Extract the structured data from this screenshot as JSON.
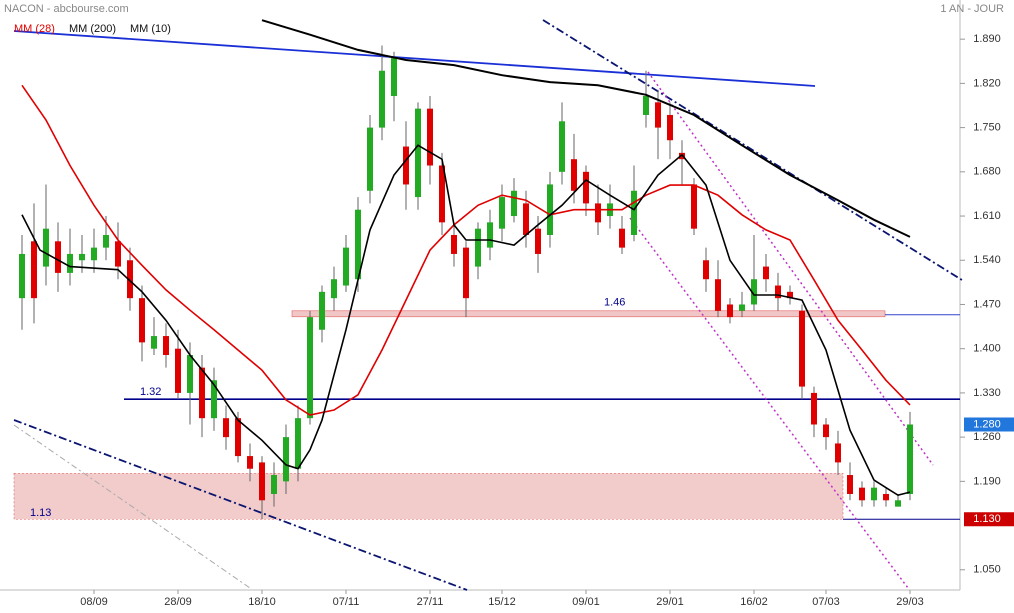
{
  "chart_data": {
    "type": "candlestick",
    "title": "NACON - abcbourse.com",
    "subtitle": "1 AN - JOUR",
    "categories": [
      null,
      null,
      null,
      null,
      null,
      null,
      "08/09",
      null,
      null,
      null,
      null,
      null,
      null,
      "28/09",
      null,
      null,
      null,
      null,
      null,
      null,
      "18/10",
      null,
      null,
      null,
      null,
      null,
      null,
      "07/11",
      null,
      null,
      null,
      null,
      null,
      null,
      "27/11",
      null,
      null,
      null,
      null,
      null,
      "15/12",
      null,
      null,
      null,
      null,
      null,
      null,
      "09/01",
      null,
      null,
      null,
      null,
      null,
      null,
      "29/01",
      null,
      null,
      null,
      null,
      null,
      null,
      "16/02",
      null,
      null,
      null,
      null,
      null,
      "07/03",
      null,
      null,
      null,
      null,
      null,
      null,
      "29/03"
    ],
    "open": [
      1.48,
      1.57,
      1.53,
      1.57,
      1.52,
      1.54,
      1.54,
      1.56,
      1.57,
      1.54,
      1.48,
      1.4,
      1.42,
      1.4,
      1.33,
      1.37,
      1.29,
      1.29,
      1.29,
      1.23,
      1.22,
      1.17,
      1.19,
      1.21,
      1.29,
      1.43,
      1.48,
      1.5,
      1.51,
      1.65,
      1.75,
      1.8,
      1.72,
      1.64,
      1.78,
      1.69,
      1.58,
      1.56,
      1.53,
      1.56,
      1.59,
      1.61,
      1.63,
      1.59,
      1.58,
      1.68,
      1.7,
      1.68,
      1.63,
      1.61,
      1.59,
      1.58,
      1.77,
      1.79,
      1.77,
      1.71,
      1.66,
      1.54,
      1.51,
      1.47,
      1.46,
      1.47,
      1.53,
      1.5,
      1.49,
      1.46,
      1.33,
      1.28,
      1.25,
      1.2,
      1.18,
      1.16,
      1.17,
      1.15,
      1.17
    ],
    "high": [
      1.58,
      1.63,
      1.66,
      1.6,
      1.59,
      1.58,
      1.59,
      1.61,
      1.6,
      1.56,
      1.5,
      1.45,
      1.44,
      1.43,
      1.41,
      1.39,
      1.37,
      1.31,
      1.3,
      1.25,
      1.23,
      1.22,
      1.28,
      1.31,
      1.46,
      1.5,
      1.53,
      1.58,
      1.64,
      1.77,
      1.88,
      1.87,
      1.76,
      1.79,
      1.8,
      1.71,
      1.6,
      1.57,
      1.6,
      1.62,
      1.66,
      1.67,
      1.65,
      1.61,
      1.68,
      1.79,
      1.74,
      1.69,
      1.66,
      1.66,
      1.61,
      1.69,
      1.84,
      1.81,
      1.79,
      1.73,
      1.67,
      1.56,
      1.54,
      1.48,
      1.49,
      1.58,
      1.55,
      1.52,
      1.5,
      1.47,
      1.34,
      1.29,
      1.27,
      1.22,
      1.19,
      1.19,
      1.18,
      1.17,
      1.3
    ],
    "low": [
      1.43,
      1.44,
      1.5,
      1.49,
      1.5,
      1.52,
      1.52,
      1.54,
      1.51,
      1.46,
      1.38,
      1.39,
      1.37,
      1.32,
      1.28,
      1.26,
      1.27,
      1.24,
      1.22,
      1.19,
      1.13,
      1.15,
      1.17,
      1.19,
      1.28,
      1.41,
      1.46,
      1.49,
      1.49,
      1.63,
      1.73,
      1.76,
      1.62,
      1.62,
      1.66,
      1.58,
      1.53,
      1.45,
      1.51,
      1.54,
      1.57,
      1.6,
      1.56,
      1.52,
      1.56,
      1.66,
      1.63,
      1.61,
      1.58,
      1.59,
      1.55,
      1.57,
      1.75,
      1.7,
      1.7,
      1.66,
      1.58,
      1.49,
      1.45,
      1.44,
      1.45,
      1.46,
      1.49,
      1.46,
      1.47,
      1.32,
      1.26,
      1.24,
      1.2,
      1.16,
      1.15,
      1.15,
      1.15,
      1.15,
      1.16
    ],
    "close": [
      1.55,
      1.48,
      1.59,
      1.52,
      1.55,
      1.55,
      1.56,
      1.58,
      1.53,
      1.48,
      1.41,
      1.42,
      1.39,
      1.33,
      1.39,
      1.29,
      1.35,
      1.26,
      1.23,
      1.21,
      1.16,
      1.2,
      1.26,
      1.29,
      1.45,
      1.49,
      1.51,
      1.56,
      1.62,
      1.75,
      1.84,
      1.86,
      1.66,
      1.78,
      1.69,
      1.6,
      1.55,
      1.48,
      1.59,
      1.6,
      1.64,
      1.65,
      1.58,
      1.55,
      1.66,
      1.76,
      1.65,
      1.63,
      1.6,
      1.63,
      1.56,
      1.65,
      1.8,
      1.75,
      1.73,
      1.7,
      1.59,
      1.51,
      1.46,
      1.45,
      1.47,
      1.51,
      1.51,
      1.48,
      1.48,
      1.34,
      1.28,
      1.26,
      1.22,
      1.17,
      1.16,
      1.18,
      1.16,
      1.16,
      1.28
    ],
    "up_color": "#22aa22",
    "down_color": "#e00000",
    "series": [
      {
        "name": "MM (28)",
        "color": "#e00000",
        "width": 1.6,
        "x": [
          0,
          2,
          4,
          6,
          8,
          10,
          12,
          14,
          16,
          18,
          20,
          22,
          24,
          26,
          28,
          30,
          32,
          34,
          36,
          38,
          40,
          42,
          44,
          46,
          48,
          50,
          52,
          54,
          56,
          58,
          60,
          62,
          64,
          66,
          68,
          70,
          72,
          74
        ],
        "values": [
          1.817,
          1.762,
          1.69,
          1.627,
          1.572,
          1.532,
          1.493,
          1.461,
          1.43,
          1.398,
          1.366,
          1.319,
          1.295,
          1.303,
          1.327,
          1.398,
          1.477,
          1.556,
          1.596,
          1.627,
          1.643,
          1.635,
          1.612,
          1.62,
          1.62,
          1.62,
          1.643,
          1.659,
          1.659,
          1.643,
          1.612,
          1.588,
          1.572,
          1.509,
          1.445,
          1.398,
          1.35,
          1.311
        ]
      },
      {
        "name": "MM (200)",
        "color": "#000000",
        "width": 2,
        "x": [
          20,
          24,
          28,
          32,
          36,
          40,
          44,
          48,
          52,
          56,
          60,
          64,
          68,
          71,
          74
        ],
        "values": [
          1.92,
          1.897,
          1.873,
          1.857,
          1.849,
          1.833,
          1.822,
          1.817,
          1.802,
          1.77,
          1.722,
          1.675,
          1.635,
          1.604,
          1.577
        ]
      },
      {
        "name": "MM (10)",
        "color": "#000000",
        "width": 1.6,
        "x": [
          0,
          1.5,
          4,
          8,
          10,
          12,
          14,
          16,
          18,
          20,
          22,
          23,
          24,
          25,
          27,
          29,
          31,
          33,
          35,
          36,
          37,
          39,
          41,
          43,
          45,
          47,
          49,
          51,
          53,
          55,
          57,
          59,
          61,
          63,
          65,
          67,
          69,
          71,
          73,
          74
        ],
        "values": [
          1.612,
          1.556,
          1.53,
          1.525,
          1.49,
          1.445,
          1.39,
          1.343,
          1.287,
          1.255,
          1.216,
          1.21,
          1.24,
          1.287,
          1.43,
          1.588,
          1.675,
          1.722,
          1.7,
          1.596,
          1.572,
          1.572,
          1.564,
          1.596,
          1.627,
          1.667,
          1.643,
          1.62,
          1.675,
          1.707,
          1.659,
          1.54,
          1.485,
          1.485,
          1.477,
          1.398,
          1.271,
          1.192,
          1.168,
          1.173
        ]
      }
    ],
    "levels": [
      {
        "value": 1.32,
        "kind": "line",
        "color": "#00008b"
      },
      {
        "value": 1.46,
        "kind": "band",
        "color": "#e8a0a0"
      },
      {
        "value": 1.13,
        "kind": "zone",
        "color": "#e8a0a0"
      }
    ],
    "price_markers": [
      {
        "value": 1.28,
        "label": "1.280",
        "color": "#2277dd"
      },
      {
        "value": 1.13,
        "label": "1.130",
        "color": "#cc0000"
      }
    ],
    "ylim": [
      1.018,
      1.952
    ],
    "yticks": [
      {
        "value": 1.89,
        "label": "1.890"
      },
      {
        "value": 1.82,
        "label": "1.820"
      },
      {
        "value": 1.75,
        "label": "1.750"
      },
      {
        "value": 1.68,
        "label": "1.680"
      },
      {
        "value": 1.61,
        "label": "1.610"
      },
      {
        "value": 1.54,
        "label": "1.540"
      },
      {
        "value": 1.47,
        "label": "1.470"
      },
      {
        "value": 1.4,
        "label": "1.400"
      },
      {
        "value": 1.33,
        "label": "1.330"
      },
      {
        "value": 1.26,
        "label": "1.260"
      },
      {
        "value": 1.19,
        "label": "1.190"
      },
      {
        "value": 1.05,
        "label": "1.050"
      }
    ]
  }
}
